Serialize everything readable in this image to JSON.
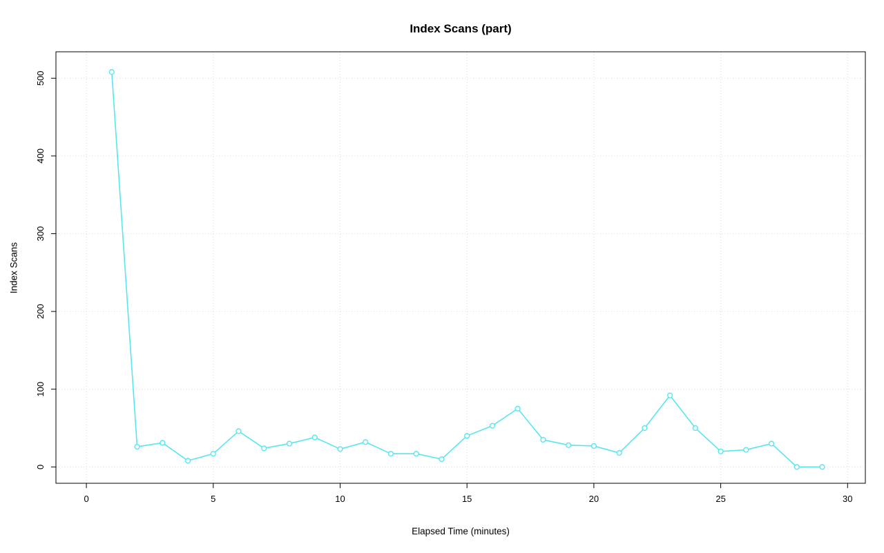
{
  "page": {
    "background": "#ffffff",
    "text_color": "#000000"
  },
  "chart_data": {
    "type": "line",
    "title": "Index Scans (part)",
    "xlabel": "Elapsed Time (minutes)",
    "ylabel": "Index Scans",
    "x": [
      1,
      2,
      3,
      4,
      5,
      6,
      7,
      8,
      9,
      10,
      11,
      12,
      13,
      14,
      15,
      16,
      17,
      18,
      19,
      20,
      21,
      22,
      23,
      24,
      25,
      26,
      27,
      28,
      29
    ],
    "values": [
      508,
      26,
      31,
      8,
      17,
      46,
      24,
      30,
      38,
      23,
      32,
      17,
      17,
      10,
      40,
      53,
      75,
      35,
      28,
      27,
      18,
      50,
      92,
      50,
      20,
      22,
      30,
      0,
      0
    ],
    "xlim": [
      -1.2,
      30.7
    ],
    "ylim": [
      -21,
      534
    ],
    "xticks": [
      0,
      5,
      10,
      15,
      20,
      25,
      30
    ],
    "yticks": [
      0,
      100,
      200,
      300,
      400,
      500
    ],
    "grid": true,
    "legend": "none",
    "marker": "open-circle",
    "line_color": "#55e6f0",
    "grid_color": "#d9d9d9",
    "axis_color": "#000000",
    "tick_font_size": 13
  }
}
